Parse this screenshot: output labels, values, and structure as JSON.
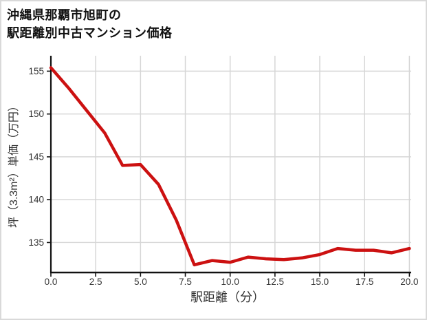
{
  "title": {
    "line1": "沖縄県那覇市旭町の",
    "line2": "駅距離別中古マンション価格"
  },
  "chart_data": {
    "type": "line",
    "title": "沖縄県那覇市旭町の駅距離別中古マンション価格",
    "xlabel": "駅距離（分）",
    "ylabel": "坪（3.3m²）単価（万円）",
    "x": [
      0,
      1,
      2,
      3,
      4,
      5,
      6,
      7,
      8,
      9,
      10,
      11,
      12,
      13,
      14,
      15,
      16,
      17,
      18,
      19,
      20
    ],
    "y": [
      155.4,
      153.0,
      150.4,
      147.8,
      144.0,
      144.1,
      141.8,
      137.6,
      132.4,
      132.9,
      132.7,
      133.3,
      133.1,
      133.0,
      133.2,
      133.6,
      134.3,
      134.1,
      134.1,
      133.8,
      134.3
    ],
    "x_ticks": {
      "values": [
        0,
        2.5,
        5,
        7.5,
        10,
        12.5,
        15,
        17.5,
        20
      ],
      "labels": [
        "0.0",
        "2.5",
        "5.0",
        "7.5",
        "10.0",
        "12.5",
        "15.0",
        "17.5",
        "20.0"
      ]
    },
    "y_ticks": {
      "values": [
        135,
        140,
        145,
        150,
        155
      ],
      "labels": [
        "135",
        "140",
        "145",
        "150",
        "155"
      ]
    },
    "xlim": [
      0,
      20.1
    ],
    "ylim": [
      131.5,
      156.8
    ],
    "grid": true,
    "legend": false,
    "colors": {
      "line": "#cc1111",
      "grid": "#d6d6d6",
      "axis": "#111111",
      "text": "#333333"
    }
  }
}
